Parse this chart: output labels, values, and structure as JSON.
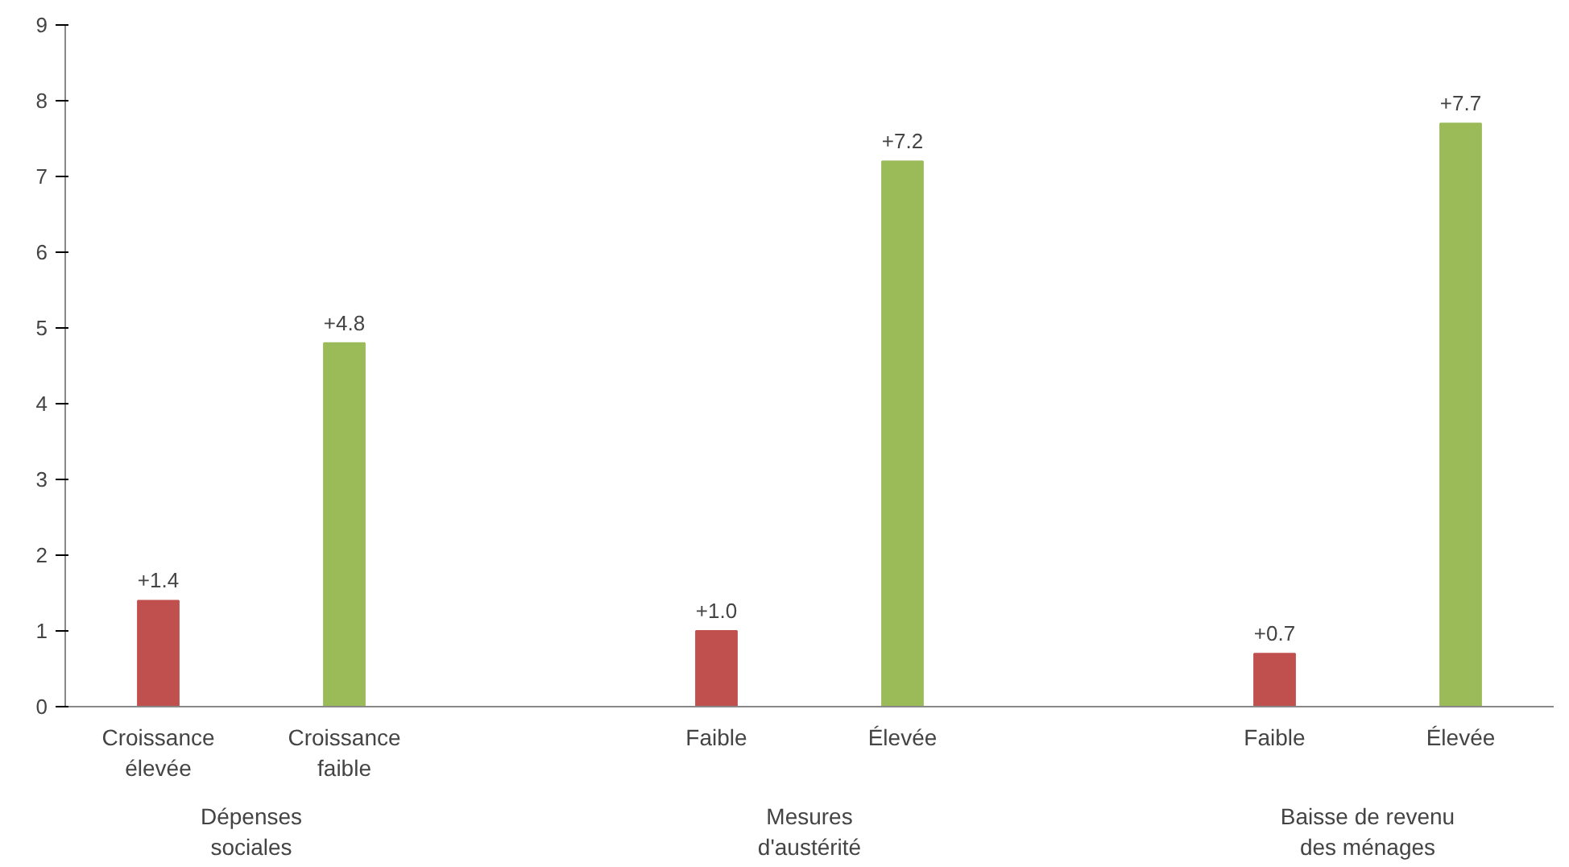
{
  "chart_data": {
    "type": "bar",
    "categories": [
      "Croissance\nélevée",
      "Croissance\nfaible",
      null,
      "Faible",
      "Élevée",
      null,
      "Faible",
      "Élevée"
    ],
    "values": [
      1.4,
      4.8,
      null,
      1.0,
      7.2,
      null,
      0.7,
      7.7
    ],
    "colors": [
      "#c0504d",
      "#9bbb59",
      null,
      "#c0504d",
      "#9bbb59",
      null,
      "#c0504d",
      "#9bbb59"
    ],
    "value_labels": [
      "+1.4",
      "+4.8",
      null,
      "+1.0",
      "+7.2",
      null,
      "+0.7",
      "+7.7"
    ],
    "ylim": [
      0,
      9
    ],
    "yticks": [
      0,
      1,
      2,
      3,
      4,
      5,
      6,
      7,
      8,
      9
    ],
    "grid": false,
    "annotations": [
      "Dépenses\nsociales",
      "Mesures\nd'austérité",
      "Baisse de revenu\ndes ménages"
    ]
  }
}
